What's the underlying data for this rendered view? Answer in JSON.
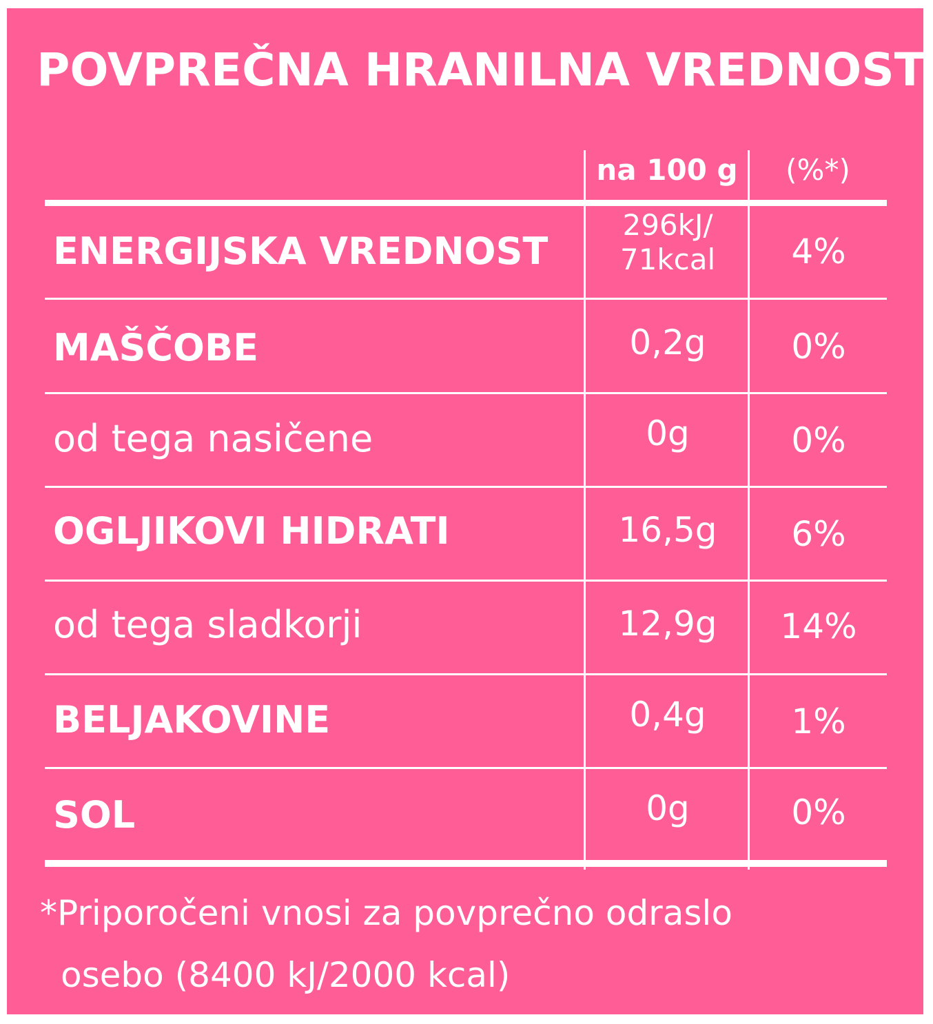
{
  "title": "POVPREČNA HRANILNA VREDNOST",
  "columns": {
    "per_100g": "na 100 g",
    "percent": "(%*)"
  },
  "rows": [
    {
      "label": "ENERGIJSKA VREDNOST",
      "value_line1": "296kJ/",
      "value_line2": "71kcal",
      "percent": "4%"
    },
    {
      "label": "MAŠČOBE",
      "value": "0,2g",
      "percent": "0%"
    },
    {
      "label": "od tega nasičene",
      "value": "0g",
      "percent": "0%"
    },
    {
      "label": "OGLJIKOVI HIDRATI",
      "value": "16,5g",
      "percent": "6%"
    },
    {
      "label": "od tega sladkorji",
      "value": "12,9g",
      "percent": "14%"
    },
    {
      "label": "BELJAKOVINE",
      "value": "0,4g",
      "percent": "1%"
    },
    {
      "label": "SOL",
      "value": "0g",
      "percent": "0%"
    }
  ],
  "footnote": {
    "line1": "*Priporočeni vnosi za povprečno odraslo",
    "line2": "osebo (8400 kJ/2000 kcal)"
  },
  "colors": {
    "background": "#ff5d96",
    "text": "#ffffff"
  }
}
